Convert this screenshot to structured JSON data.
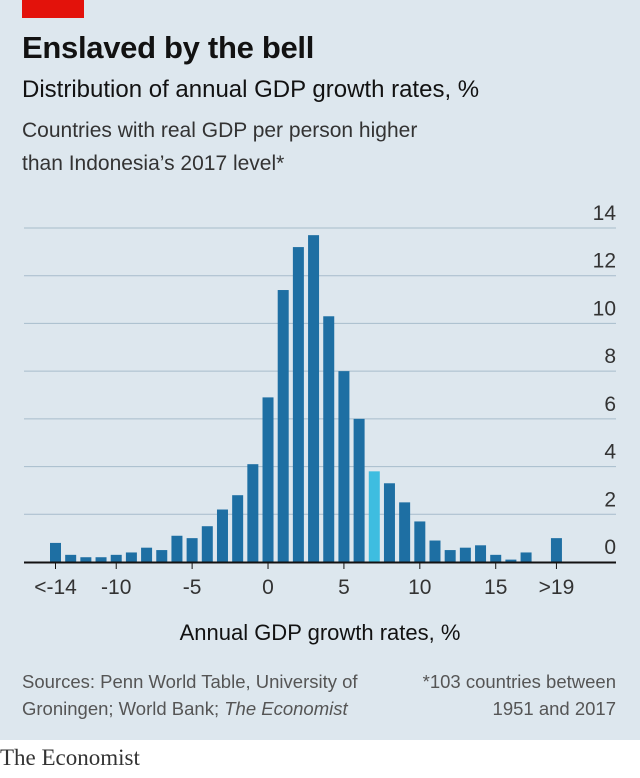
{
  "header": {
    "title": "Enslaved by the bell",
    "subtitle": "Distribution of annual GDP growth rates, %",
    "subtitle2": "Countries with real GDP per person higher than Indonesia’s 2017 level*"
  },
  "footer": {
    "sources_prefix": "Sources: Penn World Table, University of Groningen; World Bank; ",
    "sources_italic": "The Economist",
    "note": "*103 countries between 1951 and 2017",
    "brand": "The Economist"
  },
  "colors": {
    "bar": "#1e6fa3",
    "highlight": "#3ebde0",
    "gridline": "#a7bccb",
    "baseline": "#121212",
    "panel": "#dde7ee"
  },
  "chart_data": {
    "type": "bar",
    "xlabel": "Annual GDP growth rates, %",
    "ylabel": "",
    "ylim": [
      0,
      14
    ],
    "yticks": [
      0,
      2,
      4,
      6,
      8,
      10,
      12,
      14
    ],
    "categories": [
      "<-14",
      "-13",
      "-12",
      "-11",
      "-10",
      "-9",
      "-8",
      "-7",
      "-6",
      "-5",
      "-4",
      "-3",
      "-2",
      "-1",
      "0",
      "1",
      "2",
      "3",
      "4",
      "5",
      "6",
      "7",
      "8",
      "9",
      "10",
      "11",
      "12",
      "13",
      "14",
      "15",
      "16",
      "17",
      "18",
      ">19"
    ],
    "values": [
      0.8,
      0.3,
      0.2,
      0.2,
      0.3,
      0.4,
      0.6,
      0.5,
      1.1,
      1.0,
      1.5,
      2.2,
      2.8,
      4.1,
      6.9,
      11.4,
      13.2,
      13.7,
      10.3,
      8.0,
      6.0,
      3.8,
      3.3,
      2.5,
      1.7,
      0.9,
      0.5,
      0.6,
      0.7,
      0.3,
      0.1,
      0.4,
      0.0,
      1.0
    ],
    "highlight_category": "7",
    "xtick_labels": [
      {
        "category": "<-14",
        "label": "<-14"
      },
      {
        "category": "-10",
        "label": "-10"
      },
      {
        "category": "-5",
        "label": "-5"
      },
      {
        "category": "0",
        "label": "0"
      },
      {
        "category": "5",
        "label": "5"
      },
      {
        "category": "10",
        "label": "10"
      },
      {
        "category": "15",
        "label": "15"
      },
      {
        "category": ">19",
        "label": ">19"
      }
    ],
    "grid": true
  }
}
